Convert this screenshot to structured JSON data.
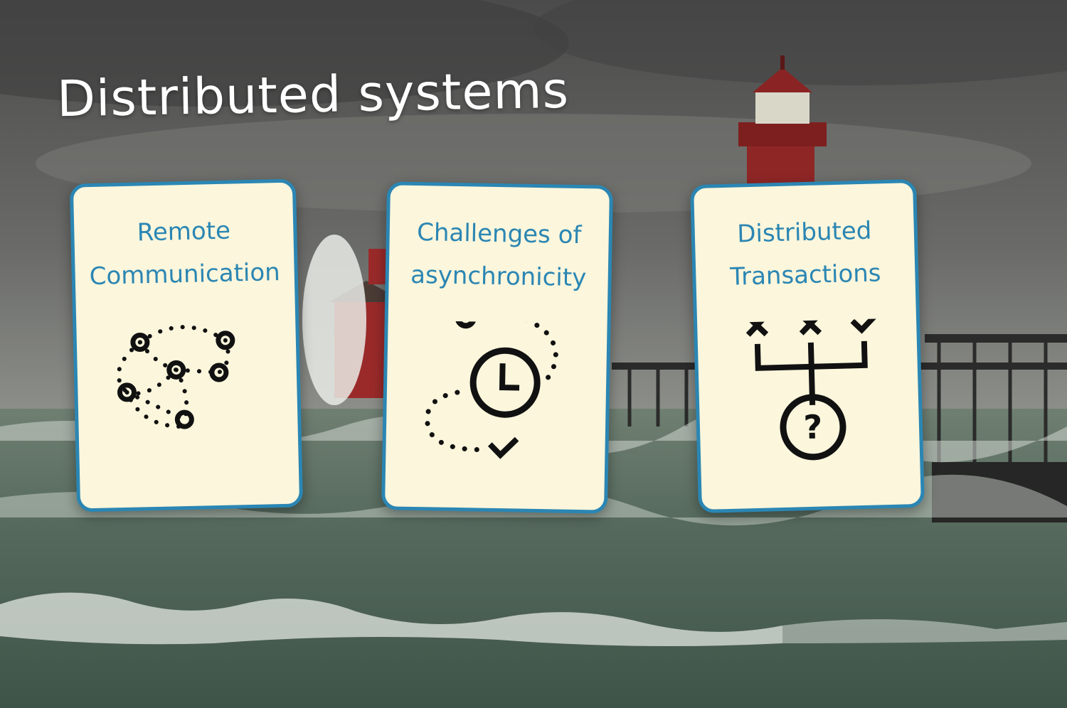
{
  "slide": {
    "title": "Distributed systems",
    "cards": [
      {
        "line1": "Remote",
        "line2": "Communication",
        "icon": "network-nodes-icon"
      },
      {
        "line1": "Challenges of",
        "line2": "asynchronicity",
        "icon": "clock-cycle-icon"
      },
      {
        "line1": "Distributed",
        "line2": "Transactions",
        "icon": "transaction-branch-icon"
      }
    ]
  },
  "colors": {
    "card_fill": "#fbf6dc",
    "card_border": "#2b86b3",
    "title_text": "#ffffff",
    "icon": "#111111"
  }
}
